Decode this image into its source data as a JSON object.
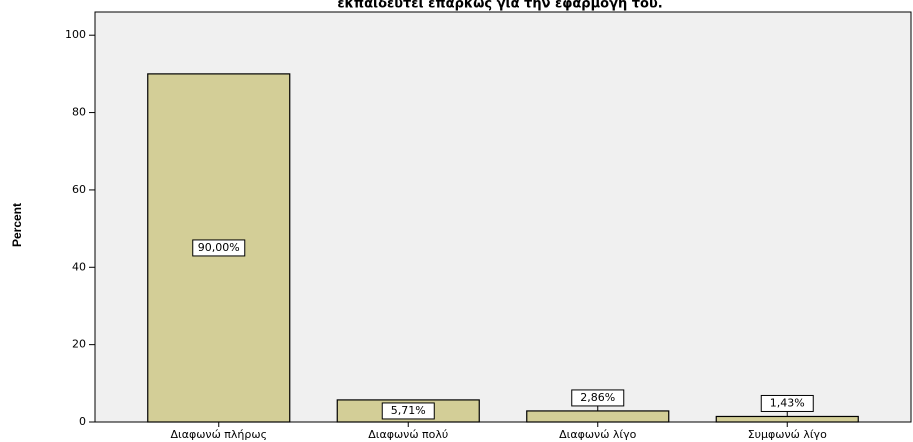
{
  "chart_data": {
    "type": "bar",
    "title": "εκπαιδευτεί επαρκώς για την εφαρμογή του.",
    "y_label": "Percent",
    "categories": [
      "Διαφωνώ πλήρως",
      "Διαφωνώ πολύ",
      "Διαφωνώ λίγο",
      "Συμφωνώ λίγο"
    ],
    "values": [
      90,
      5.71,
      2.86,
      1.43
    ],
    "value_labels": [
      "90,00%",
      "5,71%",
      "2,86%",
      "1,43%"
    ],
    "color": "#d3ce97",
    "ylim": [
      0,
      106
    ],
    "yticks": [
      0,
      20,
      40,
      60,
      80,
      100
    ],
    "grid": false
  }
}
